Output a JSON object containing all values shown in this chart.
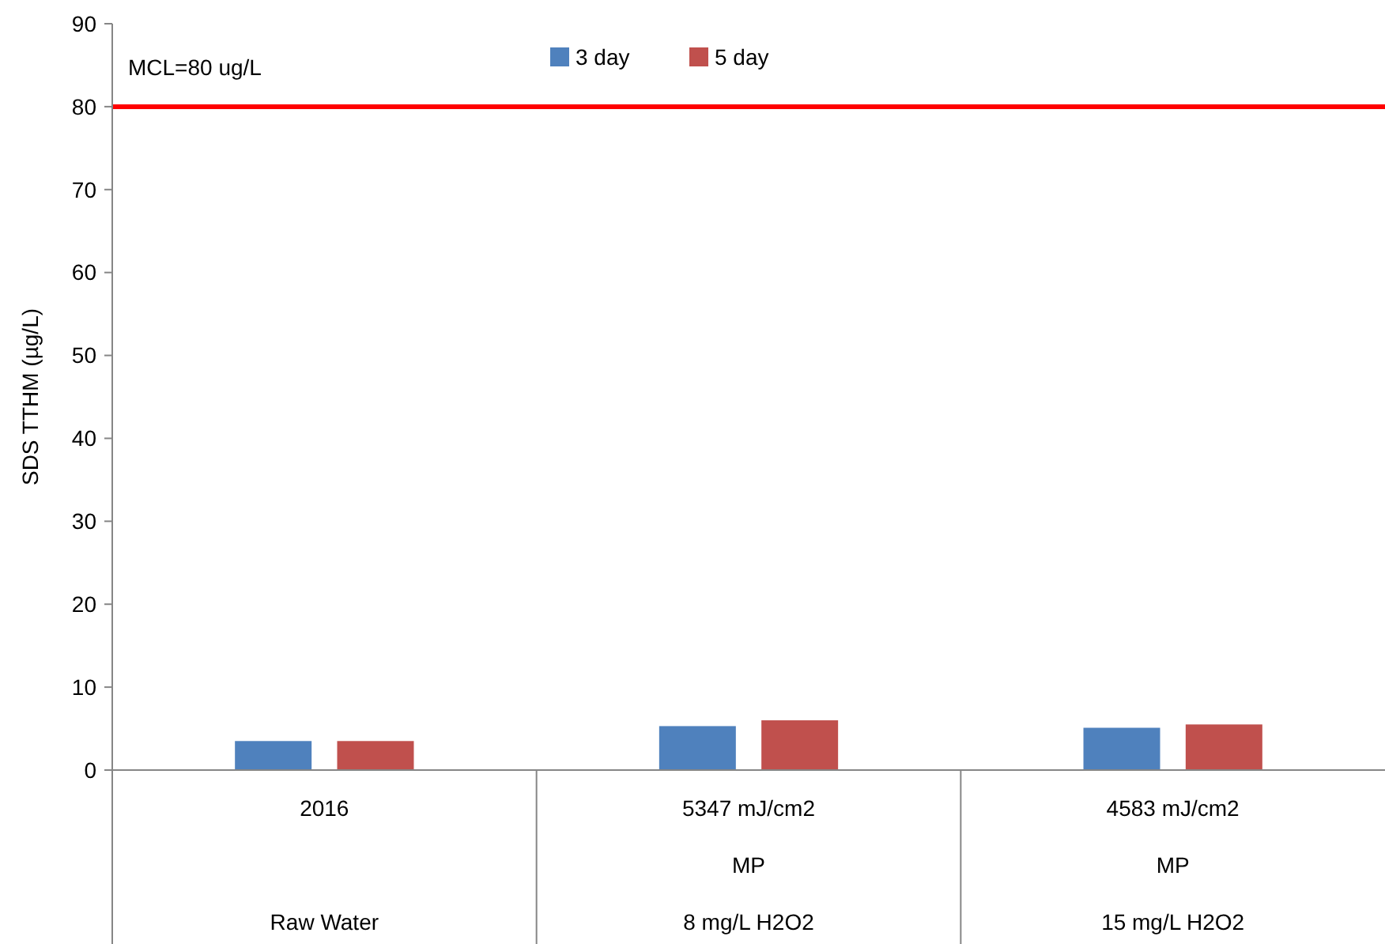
{
  "chart_data": {
    "type": "bar",
    "ylabel": "SDS TTHM (µg/L)",
    "categories": [
      "2016\n\nRaw Water",
      "5347 mJ/cm2\nMP\n8 mg/L H2O2",
      "4583 mJ/cm2\nMP\n15 mg/L H2O2"
    ],
    "series": [
      {
        "name": "3 day",
        "color": "#4f81bd",
        "values": [
          3.5,
          5.3,
          5.1
        ]
      },
      {
        "name": "5 day",
        "color": "#c0504d",
        "values": [
          3.5,
          6.0,
          5.5
        ]
      }
    ],
    "ylim": [
      0,
      90
    ],
    "yticks": [
      0,
      10,
      20,
      30,
      40,
      50,
      60,
      70,
      80,
      90
    ],
    "ref_lines": [
      {
        "axis": "y",
        "value": 80,
        "label": "MCL=80 ug/L",
        "color": "#ff0000"
      }
    ],
    "legend": "top"
  }
}
